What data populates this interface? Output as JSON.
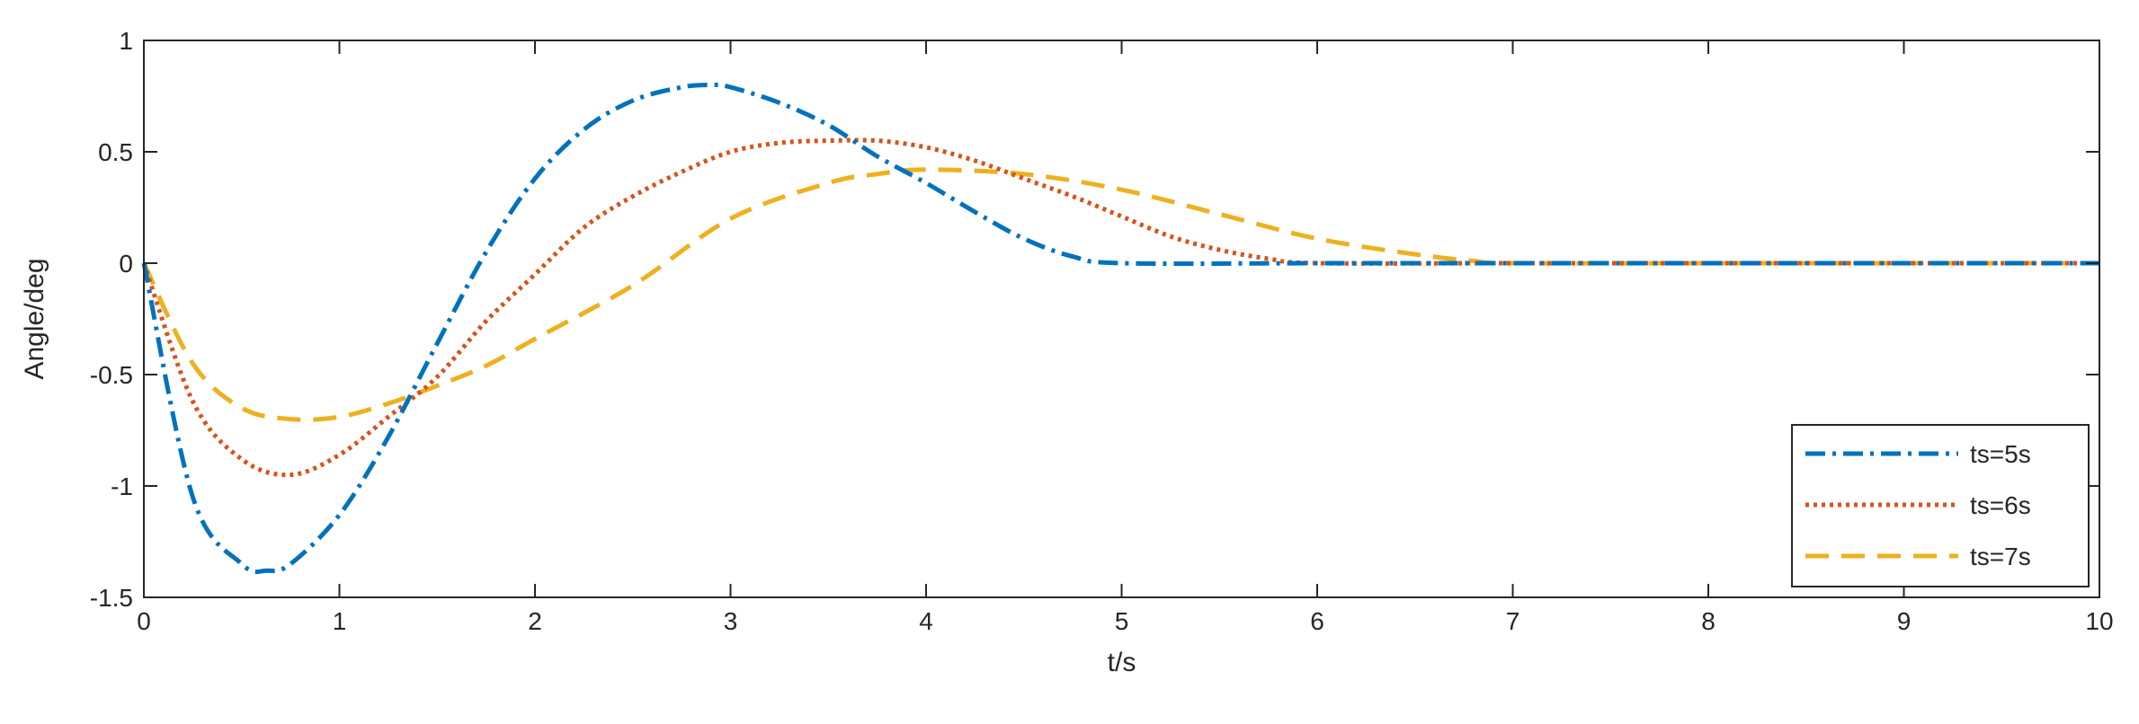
{
  "chart_data": {
    "type": "line",
    "title": "",
    "xlabel": "t/s",
    "ylabel": "Angle/deg",
    "xlim": [
      0,
      10
    ],
    "ylim": [
      -1.5,
      1
    ],
    "xticks": [
      0,
      1,
      2,
      3,
      4,
      5,
      6,
      7,
      8,
      9,
      10
    ],
    "yticks": [
      -1.5,
      -1,
      -0.5,
      0,
      0.5,
      1
    ],
    "xtick_labels": [
      "0",
      "1",
      "2",
      "3",
      "4",
      "5",
      "6",
      "7",
      "8",
      "9",
      "10"
    ],
    "ytick_labels": [
      "-1.5",
      "-1",
      "-0.5",
      "0",
      "0.5",
      "1"
    ],
    "grid": false,
    "legend_position": "bottom-right",
    "series": [
      {
        "name": "ts=5s",
        "color": "#0072BD",
        "line_style": "dash-dot",
        "x": [
          0,
          0.25,
          0.5,
          0.63,
          0.75,
          1.0,
          1.25,
          1.5,
          1.75,
          2.0,
          2.25,
          2.5,
          2.75,
          2.9,
          3.0,
          3.25,
          3.5,
          3.75,
          4.0,
          4.25,
          4.5,
          4.75,
          5.0,
          6.0,
          7.0,
          8.0,
          9.0,
          10.0
        ],
        "y": [
          0,
          -1.05,
          -1.35,
          -1.38,
          -1.35,
          -1.13,
          -0.78,
          -0.36,
          0.05,
          0.38,
          0.6,
          0.73,
          0.79,
          0.8,
          0.79,
          0.72,
          0.62,
          0.48,
          0.36,
          0.23,
          0.11,
          0.03,
          0.0,
          0.0,
          0.0,
          0.0,
          0.0,
          0.0
        ]
      },
      {
        "name": "ts=6s",
        "color": "#D95319",
        "line_style": "dotted",
        "x": [
          0,
          0.25,
          0.5,
          0.75,
          1.0,
          1.25,
          1.5,
          1.75,
          2.0,
          2.25,
          2.5,
          2.75,
          3.0,
          3.25,
          3.5,
          3.75,
          4.0,
          4.25,
          4.5,
          4.75,
          5.0,
          5.25,
          5.5,
          5.75,
          6.0,
          7.0,
          8.0,
          9.0,
          10.0
        ],
        "y": [
          0,
          -0.62,
          -0.88,
          -0.95,
          -0.86,
          -0.69,
          -0.51,
          -0.26,
          -0.05,
          0.16,
          0.3,
          0.41,
          0.5,
          0.54,
          0.55,
          0.55,
          0.52,
          0.46,
          0.38,
          0.3,
          0.21,
          0.12,
          0.06,
          0.02,
          0.0,
          0.0,
          0.0,
          0.0,
          0.0
        ]
      },
      {
        "name": "ts=7s",
        "color": "#EDB120",
        "line_style": "dashed",
        "x": [
          0,
          0.25,
          0.5,
          0.75,
          1.0,
          1.25,
          1.5,
          1.75,
          2.0,
          2.5,
          3.0,
          3.5,
          3.75,
          4.0,
          4.5,
          5.0,
          5.5,
          6.0,
          6.5,
          6.8,
          7.0,
          8.0,
          9.0,
          10.0
        ],
        "y": [
          0,
          -0.45,
          -0.65,
          -0.7,
          -0.69,
          -0.63,
          -0.55,
          -0.46,
          -0.34,
          -0.1,
          0.2,
          0.36,
          0.4,
          0.42,
          0.4,
          0.33,
          0.22,
          0.11,
          0.04,
          0.01,
          0.0,
          0.0,
          0.0,
          0.0
        ]
      }
    ]
  }
}
